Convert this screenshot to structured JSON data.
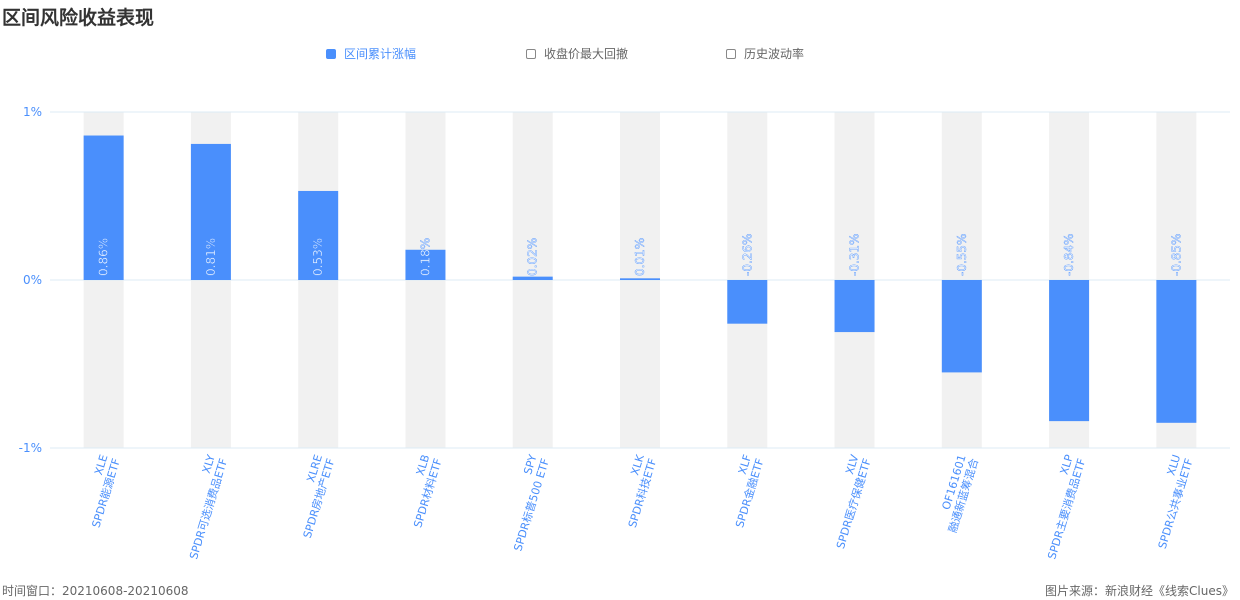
{
  "title": "区间风险收益表现",
  "legend": {
    "items": [
      {
        "label": "区间累计涨幅",
        "active": true
      },
      {
        "label": "收盘价最大回撤",
        "active": false
      },
      {
        "label": "历史波动率",
        "active": false
      }
    ]
  },
  "footer": {
    "left": "时间窗口：20210608-20210608",
    "right": "图片来源：新浪财经《线索Clues》"
  },
  "chart_data": {
    "type": "bar",
    "categories": [
      {
        "code": "XLE",
        "name": "SPDR能源ETF"
      },
      {
        "code": "XLY",
        "name": "SPDR可选消费品ETF"
      },
      {
        "code": "XLRE",
        "name": "SPDR房地产ETF"
      },
      {
        "code": "XLB",
        "name": "SPDR材料ETF"
      },
      {
        "code": "SPY",
        "name": "SPDR标普500 ETF"
      },
      {
        "code": "XLK",
        "name": "SPDR科技ETF"
      },
      {
        "code": "XLF",
        "name": "SPDR金融ETF"
      },
      {
        "code": "XLV",
        "name": "SPDR医疗保健ETF"
      },
      {
        "code": "OF161601",
        "name": "融通新蓝筹混合"
      },
      {
        "code": "XLP",
        "name": "SPDR主要消费品ETF"
      },
      {
        "code": "XLU",
        "name": "SPDR公共事业ETF"
      }
    ],
    "values": [
      0.86,
      0.81,
      0.53,
      0.18,
      0.02,
      0.01,
      -0.26,
      -0.31,
      -0.55,
      -0.84,
      -0.85
    ],
    "value_labels": [
      "0.86%",
      "0.81%",
      "0.53%",
      "0.18%",
      "0.02%",
      "0.01%",
      "-0.26%",
      "-0.31%",
      "-0.55%",
      "-0.84%",
      "-0.85%"
    ],
    "ylim": [
      -1,
      1
    ],
    "yticks": [
      {
        "value": 1,
        "label": "1%"
      },
      {
        "value": 0,
        "label": "0%"
      },
      {
        "value": -1,
        "label": "-1%"
      }
    ],
    "bar_color": "#4a8ffc",
    "background_bar_color": "#f1f1f1",
    "grid_color": "#dcebf5"
  }
}
